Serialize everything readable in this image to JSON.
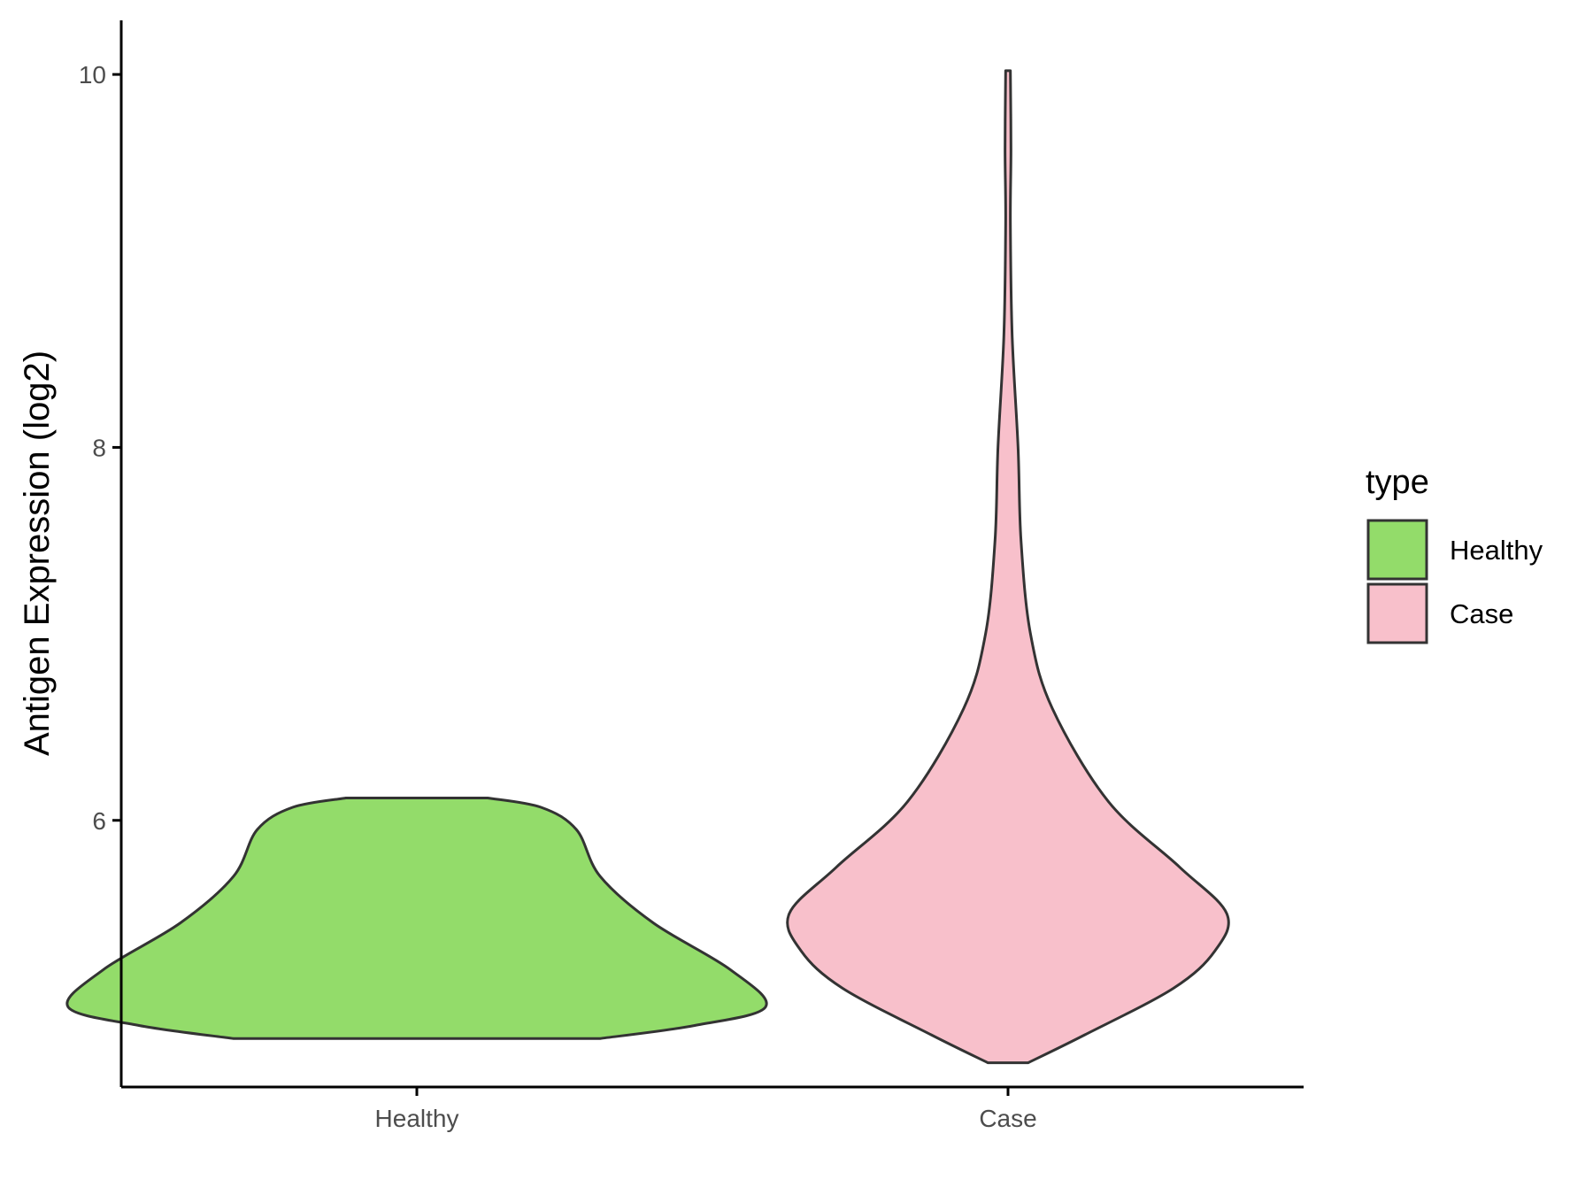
{
  "chart_data": {
    "type": "violin",
    "ylabel": "Antigen Expression (log2)",
    "xlabel": "",
    "categories": [
      "Healthy",
      "Case"
    ],
    "ylim": [
      4.57,
      10.29
    ],
    "yticks": [
      6,
      8,
      10
    ],
    "grid": false,
    "legend": {
      "title": "type",
      "placement": "right",
      "entries": [
        {
          "label": "Healthy",
          "color": "#93dc6a"
        },
        {
          "label": "Case",
          "color": "#f8c0cb"
        }
      ]
    },
    "series": [
      {
        "name": "Healthy",
        "color": "#93dc6a",
        "profile": [
          {
            "y": 4.83,
            "w": 0.31
          },
          {
            "y": 4.9,
            "w": 0.47
          },
          {
            "y": 5.0,
            "w": 0.59
          },
          {
            "y": 5.2,
            "w": 0.53
          },
          {
            "y": 5.45,
            "w": 0.4
          },
          {
            "y": 5.7,
            "w": 0.31
          },
          {
            "y": 5.95,
            "w": 0.27
          },
          {
            "y": 6.07,
            "w": 0.21
          },
          {
            "y": 6.12,
            "w": 0.12
          }
        ]
      },
      {
        "name": "Case",
        "color": "#f8c0cb",
        "profile": [
          {
            "y": 4.7,
            "w": 0.034
          },
          {
            "y": 4.85,
            "w": 0.13
          },
          {
            "y": 5.1,
            "w": 0.28
          },
          {
            "y": 5.3,
            "w": 0.35
          },
          {
            "y": 5.5,
            "w": 0.37
          },
          {
            "y": 5.75,
            "w": 0.29
          },
          {
            "y": 6.1,
            "w": 0.17
          },
          {
            "y": 6.6,
            "w": 0.075
          },
          {
            "y": 7.0,
            "w": 0.038
          },
          {
            "y": 7.5,
            "w": 0.022
          },
          {
            "y": 8.0,
            "w": 0.017
          },
          {
            "y": 8.6,
            "w": 0.007
          },
          {
            "y": 9.2,
            "w": 0.004
          },
          {
            "y": 9.6,
            "w": 0.005
          },
          {
            "y": 10.02,
            "w": 0.004
          }
        ]
      }
    ]
  }
}
